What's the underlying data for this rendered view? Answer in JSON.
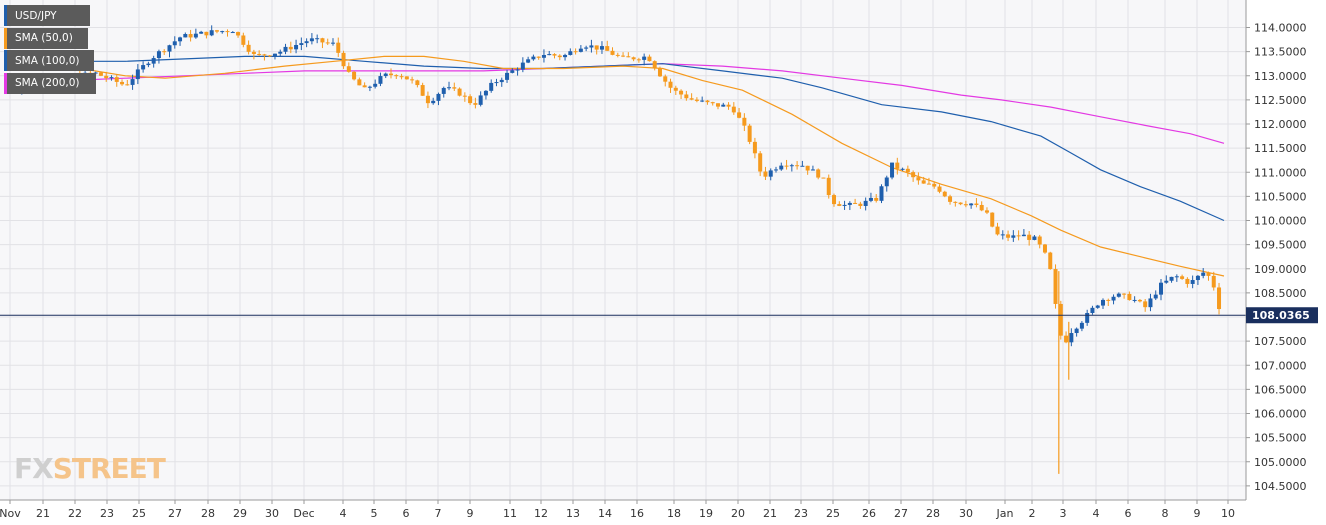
{
  "chart_data": {
    "type": "candlestick",
    "instrument": "USD/JPY",
    "ylim": [
      104.3,
      114.3
    ],
    "y_ticks": [
      "114.0000",
      "113.5000",
      "113.0000",
      "112.5000",
      "112.0000",
      "111.5000",
      "111.0000",
      "110.5000",
      "110.0000",
      "109.5000",
      "109.0000",
      "108.5000",
      "108.0000",
      "107.5000",
      "107.0000",
      "106.5000",
      "106.0000",
      "105.5000",
      "105.0000",
      "104.5000"
    ],
    "x_ticks": [
      "Nov",
      "21",
      "22",
      "23",
      "25",
      "27",
      "28",
      "29",
      "30",
      "Dec",
      "4",
      "5",
      "6",
      "7",
      "9",
      "11",
      "12",
      "13",
      "14",
      "16",
      "18",
      "19",
      "20",
      "21",
      "23",
      "25",
      "26",
      "27",
      "28",
      "30",
      "Jan",
      "2",
      "3",
      "4",
      "6",
      "8",
      "9",
      "10"
    ],
    "current_price": "108.0365",
    "grid": true,
    "legend_position": "top-left",
    "colors": {
      "up": "#1f5fad",
      "down": "#f59a1e",
      "sma50": "#f59a1e",
      "sma100": "#1f5fad",
      "sma200": "#e339e3",
      "price_line": "#1a2f5e",
      "price_tag_bg": "#1a2f5e"
    },
    "legend": [
      {
        "label": "USD/JPY",
        "color": "#1f5fad"
      },
      {
        "label": "SMA (50,0)",
        "color": "#f59a1e"
      },
      {
        "label": "SMA (100,0)",
        "color": "#1f5fad"
      },
      {
        "label": "SMA (200,0)",
        "color": "#e339e3"
      }
    ],
    "close_path": [
      [
        0,
        112.7
      ],
      [
        30,
        112.85
      ],
      [
        60,
        112.95
      ],
      [
        90,
        113.05
      ],
      [
        120,
        112.8
      ],
      [
        145,
        113.35
      ],
      [
        175,
        113.8
      ],
      [
        205,
        113.9
      ],
      [
        228,
        113.95
      ],
      [
        250,
        113.4
      ],
      [
        275,
        113.5
      ],
      [
        305,
        113.75
      ],
      [
        330,
        113.65
      ],
      [
        345,
        113.0
      ],
      [
        360,
        112.7
      ],
      [
        380,
        113.0
      ],
      [
        395,
        113.05
      ],
      [
        410,
        112.85
      ],
      [
        425,
        112.45
      ],
      [
        440,
        112.75
      ],
      [
        455,
        112.65
      ],
      [
        470,
        112.4
      ],
      [
        490,
        112.85
      ],
      [
        505,
        113.05
      ],
      [
        520,
        113.25
      ],
      [
        540,
        113.45
      ],
      [
        560,
        113.4
      ],
      [
        580,
        113.65
      ],
      [
        600,
        113.55
      ],
      [
        620,
        113.35
      ],
      [
        645,
        113.4
      ],
      [
        660,
        112.95
      ],
      [
        670,
        112.7
      ],
      [
        690,
        112.5
      ],
      [
        710,
        112.4
      ],
      [
        730,
        112.35
      ],
      [
        745,
        111.8
      ],
      [
        760,
        110.9
      ],
      [
        780,
        111.2
      ],
      [
        800,
        111.15
      ],
      [
        820,
        110.9
      ],
      [
        830,
        110.4
      ],
      [
        845,
        110.3
      ],
      [
        860,
        110.35
      ],
      [
        875,
        110.45
      ],
      [
        890,
        111.15
      ],
      [
        905,
        111.0
      ],
      [
        920,
        110.75
      ],
      [
        935,
        110.7
      ],
      [
        950,
        110.4
      ],
      [
        970,
        110.35
      ],
      [
        985,
        110.15
      ],
      [
        995,
        109.7
      ],
      [
        1010,
        109.65
      ],
      [
        1020,
        109.7
      ],
      [
        1035,
        109.6
      ],
      [
        1048,
        109.15
      ],
      [
        1056,
        108.05
      ],
      [
        1062,
        107.4
      ],
      [
        1070,
        107.7
      ],
      [
        1085,
        108.0
      ],
      [
        1100,
        108.35
      ],
      [
        1115,
        108.45
      ],
      [
        1130,
        108.4
      ],
      [
        1145,
        108.2
      ],
      [
        1160,
        108.65
      ],
      [
        1175,
        108.85
      ],
      [
        1190,
        108.7
      ],
      [
        1205,
        108.95
      ],
      [
        1213,
        108.7
      ],
      [
        1218,
        108.25
      ],
      [
        1224,
        108.03
      ]
    ],
    "spikes": [
      {
        "x": 1058,
        "high": 108.95,
        "low": 104.75
      },
      {
        "x": 1068,
        "high": 107.9,
        "low": 106.7
      }
    ],
    "series": [
      {
        "name": "SMA (50,0)",
        "points": [
          [
            0,
            113.35
          ],
          [
            60,
            113.2
          ],
          [
            120,
            113.0
          ],
          [
            160,
            112.95
          ],
          [
            220,
            113.05
          ],
          [
            280,
            113.2
          ],
          [
            330,
            113.3
          ],
          [
            380,
            113.4
          ],
          [
            420,
            113.4
          ],
          [
            460,
            113.3
          ],
          [
            500,
            113.15
          ],
          [
            560,
            113.15
          ],
          [
            620,
            113.2
          ],
          [
            660,
            113.15
          ],
          [
            700,
            112.9
          ],
          [
            740,
            112.7
          ],
          [
            790,
            112.2
          ],
          [
            840,
            111.6
          ],
          [
            890,
            111.1
          ],
          [
            940,
            110.75
          ],
          [
            990,
            110.45
          ],
          [
            1030,
            110.1
          ],
          [
            1060,
            109.8
          ],
          [
            1100,
            109.45
          ],
          [
            1140,
            109.25
          ],
          [
            1180,
            109.05
          ],
          [
            1224,
            108.85
          ]
        ]
      },
      {
        "name": "SMA (100,0)",
        "points": [
          [
            0,
            113.25
          ],
          [
            60,
            113.3
          ],
          [
            120,
            113.3
          ],
          [
            180,
            113.35
          ],
          [
            240,
            113.4
          ],
          [
            300,
            113.4
          ],
          [
            360,
            113.3
          ],
          [
            420,
            113.2
          ],
          [
            480,
            113.15
          ],
          [
            540,
            113.15
          ],
          [
            600,
            113.2
          ],
          [
            660,
            113.25
          ],
          [
            720,
            113.1
          ],
          [
            780,
            112.95
          ],
          [
            820,
            112.75
          ],
          [
            880,
            112.4
          ],
          [
            940,
            112.25
          ],
          [
            990,
            112.05
          ],
          [
            1040,
            111.75
          ],
          [
            1070,
            111.4
          ],
          [
            1100,
            111.05
          ],
          [
            1140,
            110.7
          ],
          [
            1180,
            110.4
          ],
          [
            1224,
            110.0
          ]
        ]
      },
      {
        "name": "SMA (200,0)",
        "points": [
          [
            0,
            112.85
          ],
          [
            60,
            112.9
          ],
          [
            120,
            112.95
          ],
          [
            180,
            113.0
          ],
          [
            240,
            113.05
          ],
          [
            300,
            113.1
          ],
          [
            360,
            113.1
          ],
          [
            420,
            113.1
          ],
          [
            480,
            113.1
          ],
          [
            540,
            113.15
          ],
          [
            600,
            113.2
          ],
          [
            660,
            113.25
          ],
          [
            720,
            113.2
          ],
          [
            780,
            113.1
          ],
          [
            840,
            112.95
          ],
          [
            900,
            112.8
          ],
          [
            960,
            112.6
          ],
          [
            1000,
            112.5
          ],
          [
            1050,
            112.35
          ],
          [
            1100,
            112.15
          ],
          [
            1150,
            111.95
          ],
          [
            1190,
            111.8
          ],
          [
            1224,
            111.6
          ]
        ]
      }
    ]
  },
  "watermark": {
    "brand_left": "FX",
    "brand_right": "STREET"
  }
}
